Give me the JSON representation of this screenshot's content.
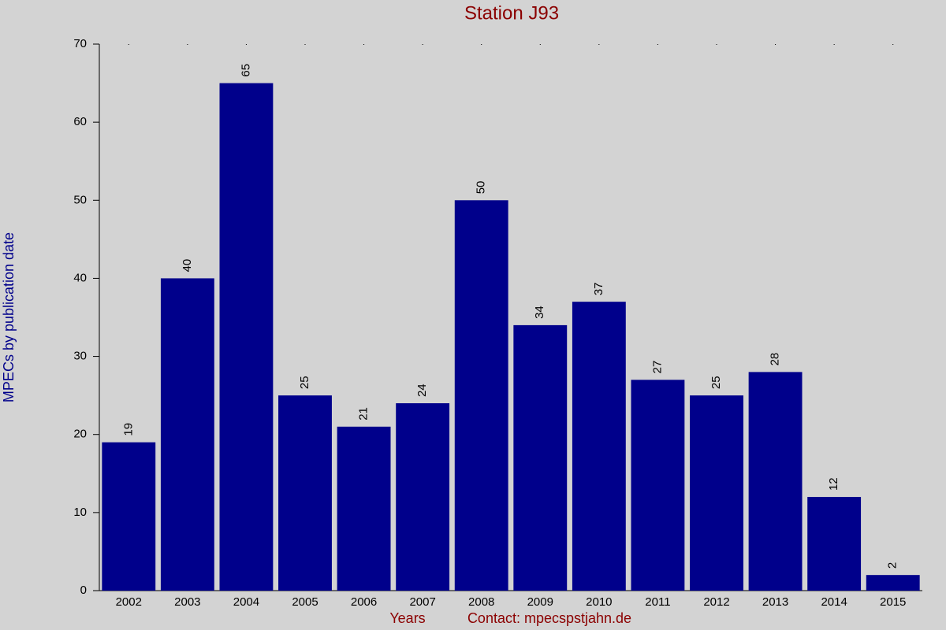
{
  "chart_data": {
    "type": "bar",
    "title": "Station J93",
    "y_label": "MPECs by publication date",
    "x_label": "Years",
    "note": "Contact: mpecspstjahn.de",
    "categories": [
      "2002",
      "2003",
      "2004",
      "2005",
      "2006",
      "2007",
      "2008",
      "2009",
      "2010",
      "2011",
      "2012",
      "2013",
      "2014",
      "2015"
    ],
    "values": [
      19,
      40,
      65,
      25,
      21,
      24,
      50,
      34,
      37,
      27,
      25,
      28,
      12,
      2
    ],
    "color": "#00008b",
    "ylim": [
      0,
      70
    ],
    "yticks": [
      0,
      10,
      20,
      30,
      40,
      50,
      60,
      70
    ],
    "grid": false
  }
}
